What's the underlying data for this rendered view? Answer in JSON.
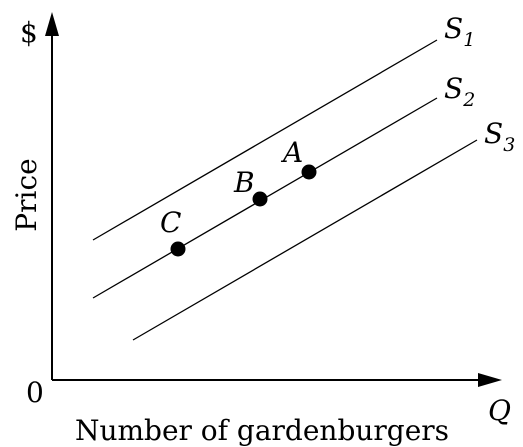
{
  "axes": {
    "y_symbol": "$",
    "y_label": "Price",
    "origin": "0",
    "x_symbol": "Q",
    "x_label": "Number of gardenburgers"
  },
  "curves": [
    {
      "label": "S",
      "subscript": "1"
    },
    {
      "label": "S",
      "subscript": "2"
    },
    {
      "label": "S",
      "subscript": "3"
    }
  ],
  "points": [
    {
      "label": "A"
    },
    {
      "label": "B"
    },
    {
      "label": "C"
    }
  ]
}
